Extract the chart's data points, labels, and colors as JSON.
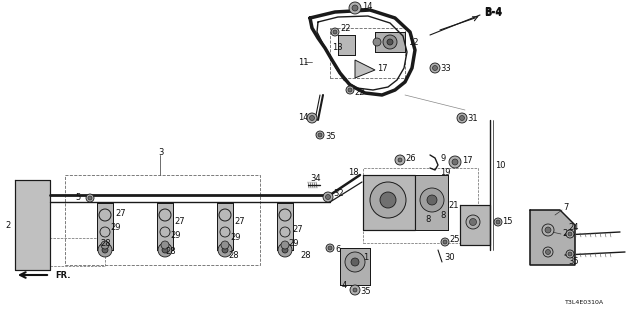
{
  "bg_color": "#ffffff",
  "fig_width": 6.4,
  "fig_height": 3.2,
  "dpi": 100,
  "line_color": "#1a1a1a",
  "gray_fill": "#c8c8c8",
  "dark_fill": "#888888"
}
